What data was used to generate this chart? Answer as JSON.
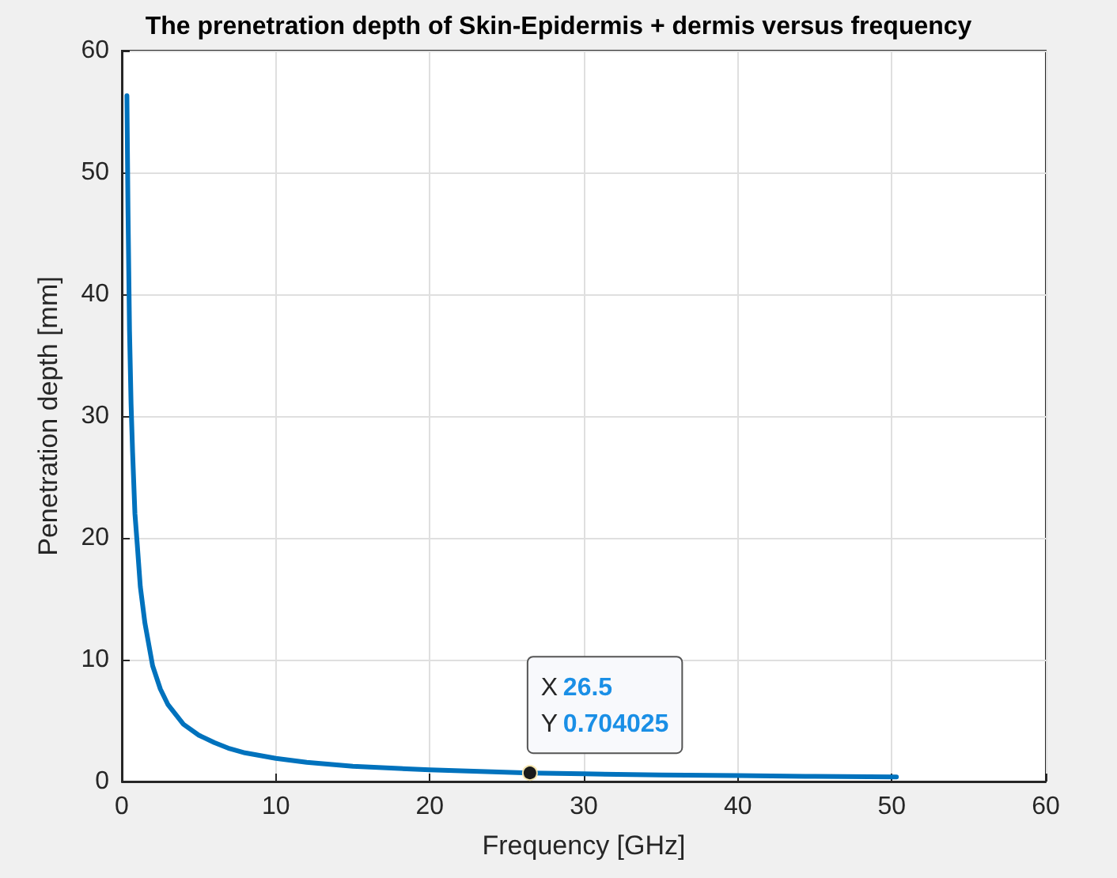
{
  "chart_data": {
    "type": "line",
    "title": "The prenetration depth of Skin-Epidermis + dermis versus frequency",
    "xlabel": "Frequency [GHz]",
    "ylabel": "Penetration depth [mm]",
    "x": [
      0.33,
      0.4,
      0.5,
      0.6,
      0.7,
      0.85,
      1,
      1.2,
      1.5,
      2,
      2.5,
      3,
      4,
      5,
      6,
      7,
      8,
      10,
      12,
      15,
      20,
      26.5,
      30,
      35,
      40,
      45,
      50.3
    ],
    "series": [
      {
        "color": "#0072bd",
        "values": [
          56.3,
          47,
          37,
          31,
          27,
          22,
          19.5,
          16,
          13,
          9.5,
          7.6,
          6.3,
          4.7,
          3.8,
          3.2,
          2.7,
          2.35,
          1.9,
          1.58,
          1.25,
          0.95,
          0.704025,
          0.63,
          0.54,
          0.48,
          0.42,
          0.38
        ]
      }
    ],
    "xlim": [
      0,
      60
    ],
    "xticks": [
      0,
      10,
      20,
      30,
      40,
      50,
      60
    ],
    "ylim": [
      0,
      60
    ],
    "yticks": [
      0,
      10,
      20,
      30,
      40,
      50,
      60
    ],
    "grid": true,
    "marker": "none",
    "line_style": "solid",
    "annotations": [
      {
        "text": "X 26.5\nY 0.704025",
        "x": 26.5,
        "y": 0.704025
      }
    ]
  }
}
